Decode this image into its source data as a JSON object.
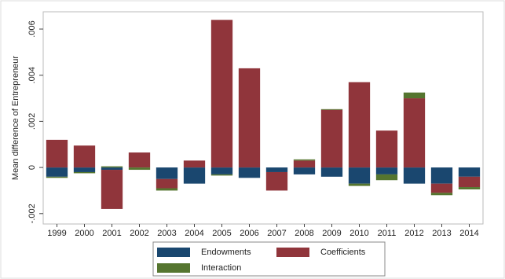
{
  "chart_data": {
    "type": "stacked-bar",
    "y_label": "Mean difference of Entrepreneur",
    "categories": [
      "1999",
      "2000",
      "2001",
      "2002",
      "2003",
      "2004",
      "2005",
      "2006",
      "2007",
      "2008",
      "2009",
      "2010",
      "2011",
      "2012",
      "2013",
      "2014"
    ],
    "series": [
      {
        "name": "Endowments",
        "color": "#1a476f",
        "values": [
          -0.0004,
          -0.0002,
          -0.0001,
          0,
          -0.0005,
          -0.0007,
          -0.0003,
          -0.00045,
          -0.0002,
          -0.0003,
          -0.0004,
          -0.0007,
          -0.0003,
          -0.0007,
          -0.0007,
          -0.0004
        ]
      },
      {
        "name": "Coefficients",
        "color": "#90353b",
        "values": [
          0.0012,
          0.00095,
          -0.0017,
          0.00065,
          -0.0004,
          0.0003,
          0.0064,
          0.0043,
          -0.0008,
          0.0003,
          0.0025,
          0.0037,
          0.0016,
          0.003,
          -0.0004,
          -0.00045
        ]
      },
      {
        "name": "Interaction",
        "color": "#55752f",
        "values": [
          -5e-05,
          -5e-05,
          5e-05,
          -0.0001,
          -0.0001,
          0,
          -5e-05,
          0,
          0,
          5e-05,
          3e-05,
          -0.0001,
          -0.00025,
          0.00025,
          -0.0001,
          -0.0001
        ]
      }
    ],
    "ylim": [
      -0.00245,
      0.00675
    ],
    "yticks": [
      {
        "value": -0.002,
        "label": "-.002"
      },
      {
        "value": 0,
        "label": "0"
      },
      {
        "value": 0.002,
        "label": ".002"
      },
      {
        "value": 0.004,
        "label": ".004"
      },
      {
        "value": 0.006,
        "label": ".006"
      }
    ],
    "legend": "bottom"
  }
}
